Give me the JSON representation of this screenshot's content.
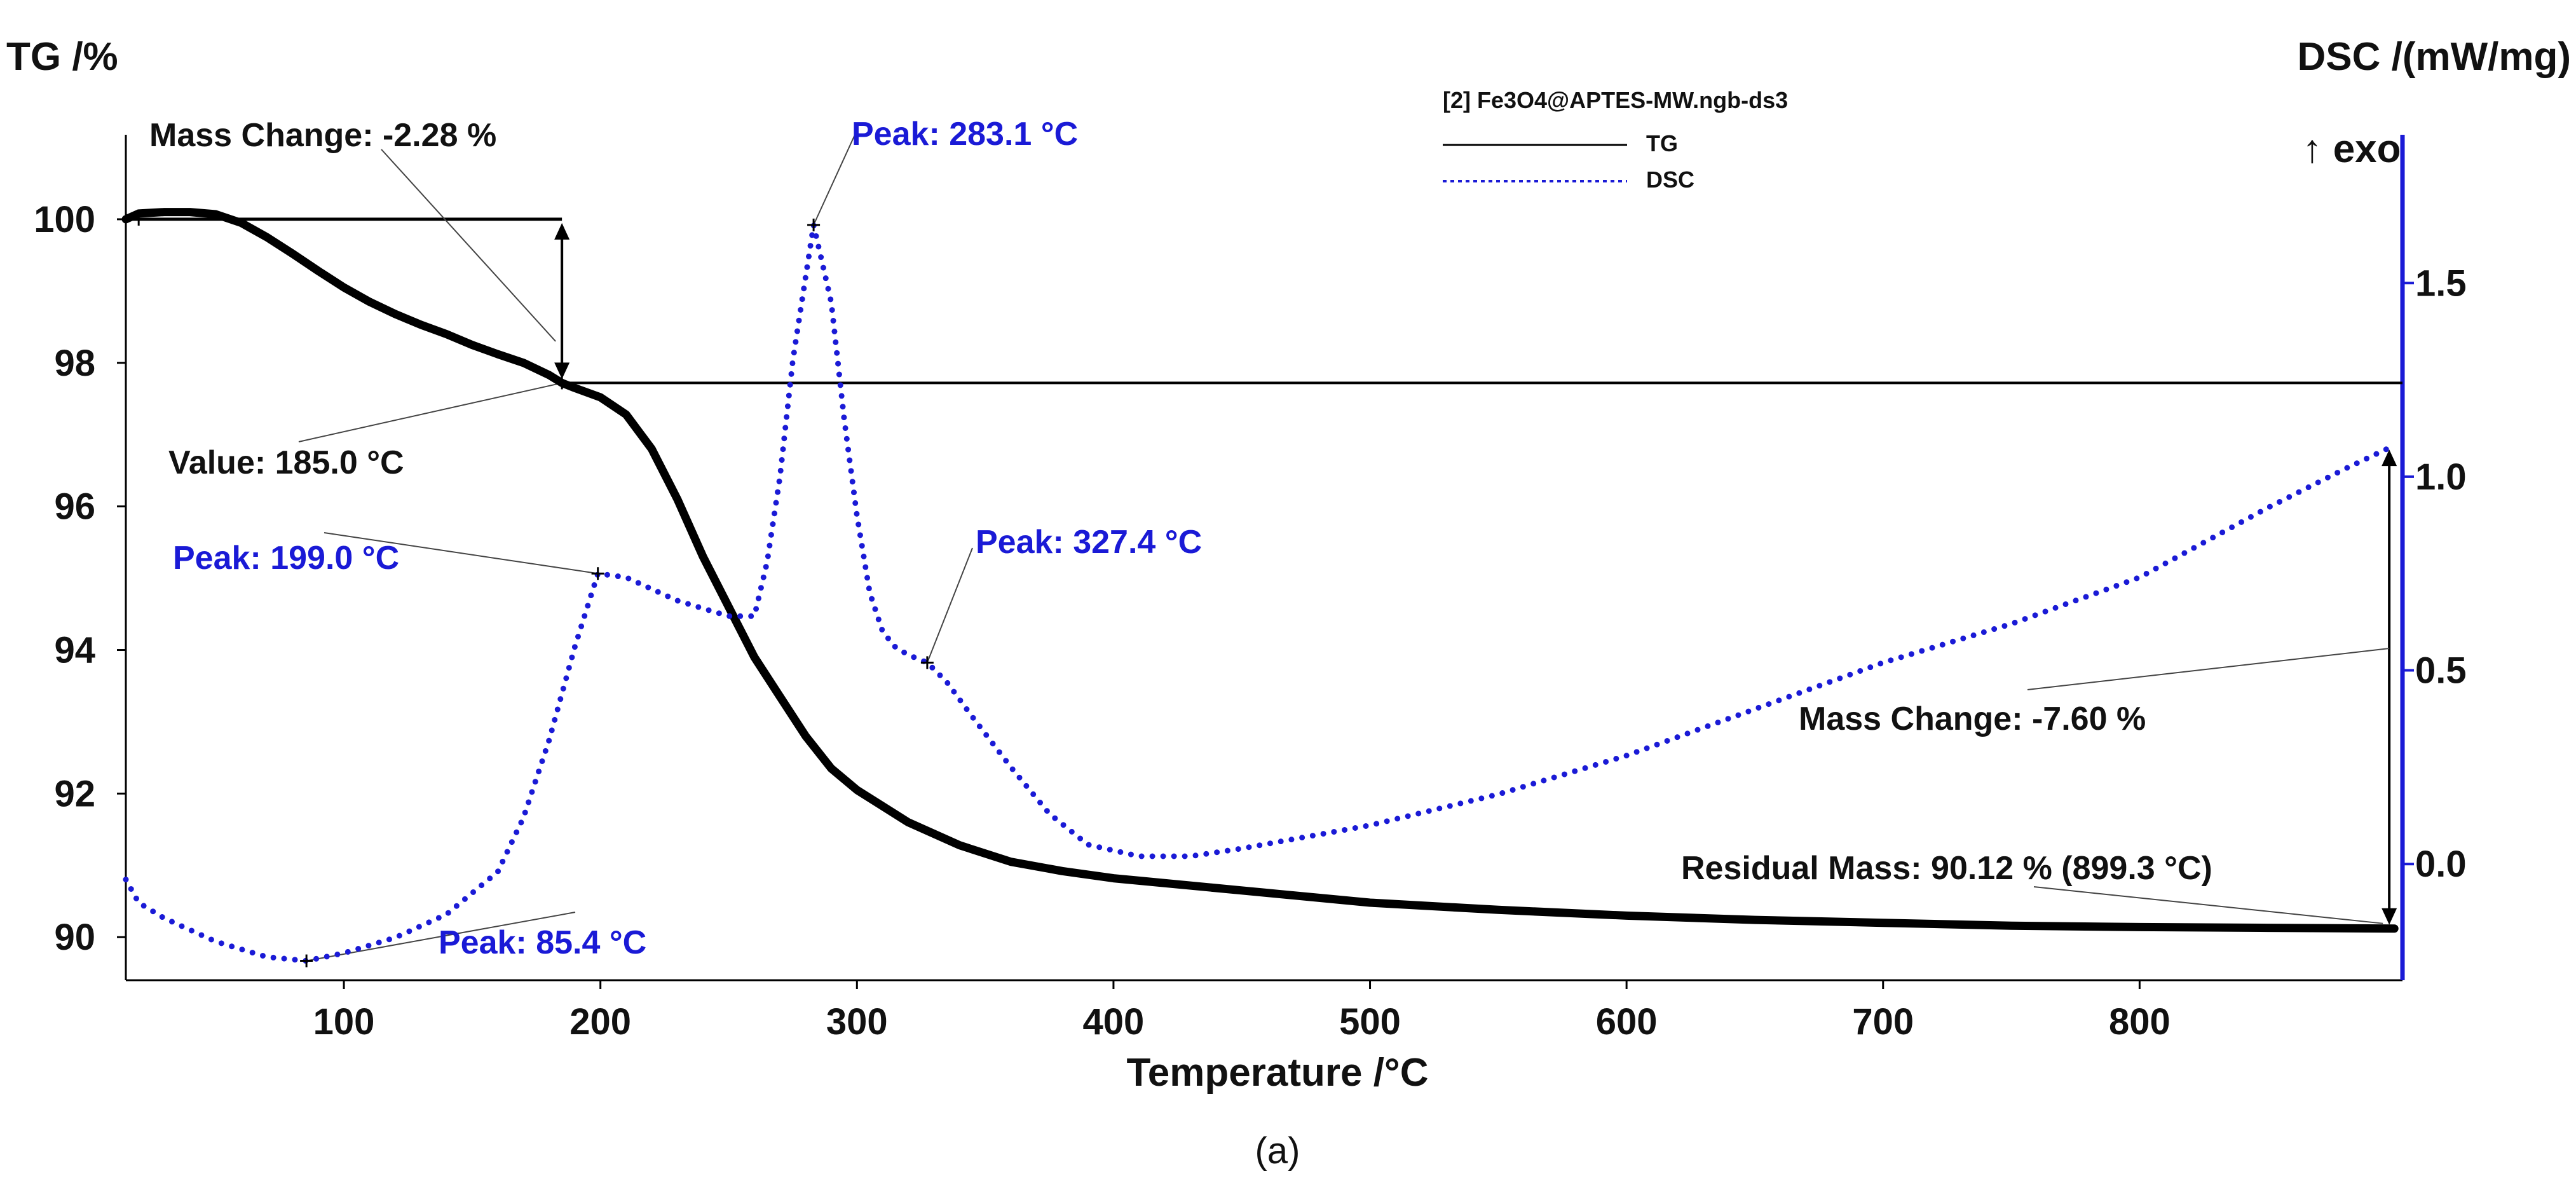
{
  "chart_data": {
    "type": "line",
    "xlabel": "Temperature /°C",
    "ylabel_left": "TG /%",
    "ylabel_right": "DSC /(mW/mg)",
    "exo_label": "↑ exo",
    "xlim": [
      15,
      900
    ],
    "ylim_left": [
      89.4,
      101
    ],
    "ylim_right": [
      -0.3,
      1.85
    ],
    "x_ticks": [
      "100",
      "200",
      "300",
      "400",
      "500",
      "600",
      "700",
      "800"
    ],
    "y_ticks_left": [
      "90",
      "92",
      "94",
      "96",
      "98",
      "100"
    ],
    "y_ticks_right": [
      "0.0",
      "0.5",
      "1.0",
      "1.5"
    ],
    "legend": {
      "title": "[2]  Fe3O4@APTES-MW.ngb-ds3",
      "entries": [
        "TG",
        "DSC"
      ]
    },
    "series": [
      {
        "name": "TG",
        "axis": "left",
        "color": "#000000",
        "style": "solid",
        "x": [
          15,
          20,
          30,
          40,
          50,
          60,
          70,
          80,
          90,
          100,
          110,
          120,
          130,
          140,
          150,
          160,
          170,
          180,
          185,
          190,
          200,
          210,
          220,
          230,
          240,
          250,
          260,
          270,
          280,
          290,
          300,
          320,
          340,
          360,
          380,
          400,
          450,
          500,
          550,
          600,
          650,
          700,
          750,
          800,
          850,
          899.3
        ],
        "values": [
          100.0,
          100.08,
          100.1,
          100.1,
          100.07,
          99.95,
          99.75,
          99.52,
          99.28,
          99.05,
          98.85,
          98.68,
          98.53,
          98.4,
          98.25,
          98.12,
          98.0,
          97.83,
          97.72,
          97.65,
          97.52,
          97.28,
          96.8,
          96.1,
          95.3,
          94.6,
          93.9,
          93.35,
          92.8,
          92.35,
          92.05,
          91.6,
          91.28,
          91.05,
          90.92,
          90.82,
          90.65,
          90.48,
          90.38,
          90.3,
          90.24,
          90.2,
          90.16,
          90.14,
          90.13,
          90.12
        ]
      },
      {
        "name": "DSC",
        "axis": "right",
        "color": "#1a1ad6",
        "style": "dotted",
        "x": [
          15,
          20,
          30,
          40,
          50,
          60,
          70,
          85.4,
          100,
          120,
          140,
          160,
          170,
          180,
          190,
          199,
          210,
          220,
          230,
          240,
          250,
          260,
          265,
          270,
          275,
          283.1,
          290,
          295,
          300,
          305,
          310,
          315,
          320,
          327.4,
          335,
          345,
          360,
          375,
          390,
          410,
          430,
          450,
          500,
          550,
          600,
          650,
          700,
          750,
          800,
          850,
          880,
          899
        ],
        "values": [
          -0.04,
          -0.1,
          -0.14,
          -0.17,
          -0.2,
          -0.22,
          -0.24,
          -0.25,
          -0.23,
          -0.19,
          -0.13,
          -0.02,
          0.12,
          0.32,
          0.56,
          0.75,
          0.74,
          0.71,
          0.68,
          0.66,
          0.64,
          0.64,
          0.78,
          1.0,
          1.3,
          1.65,
          1.45,
          1.15,
          0.9,
          0.7,
          0.6,
          0.56,
          0.54,
          0.52,
          0.47,
          0.38,
          0.25,
          0.13,
          0.05,
          0.02,
          0.02,
          0.04,
          0.1,
          0.18,
          0.28,
          0.4,
          0.52,
          0.62,
          0.74,
          0.92,
          1.02,
          1.08
        ]
      }
    ],
    "annotations": {
      "mass_change_1": "Mass Change: -2.28 %",
      "value_185": "Value: 185.0 °C",
      "peak_283": "Peak: 283.1 °C",
      "peak_199": "Peak: 199.0 °C",
      "peak_327": "Peak: 327.4 °C",
      "peak_85": "Peak: 85.4 °C",
      "mass_change_2": "Mass Change: -7.60 %",
      "residual_mass": "Residual Mass: 90.12 % (899.3 °C)"
    },
    "caption": "(a)"
  }
}
